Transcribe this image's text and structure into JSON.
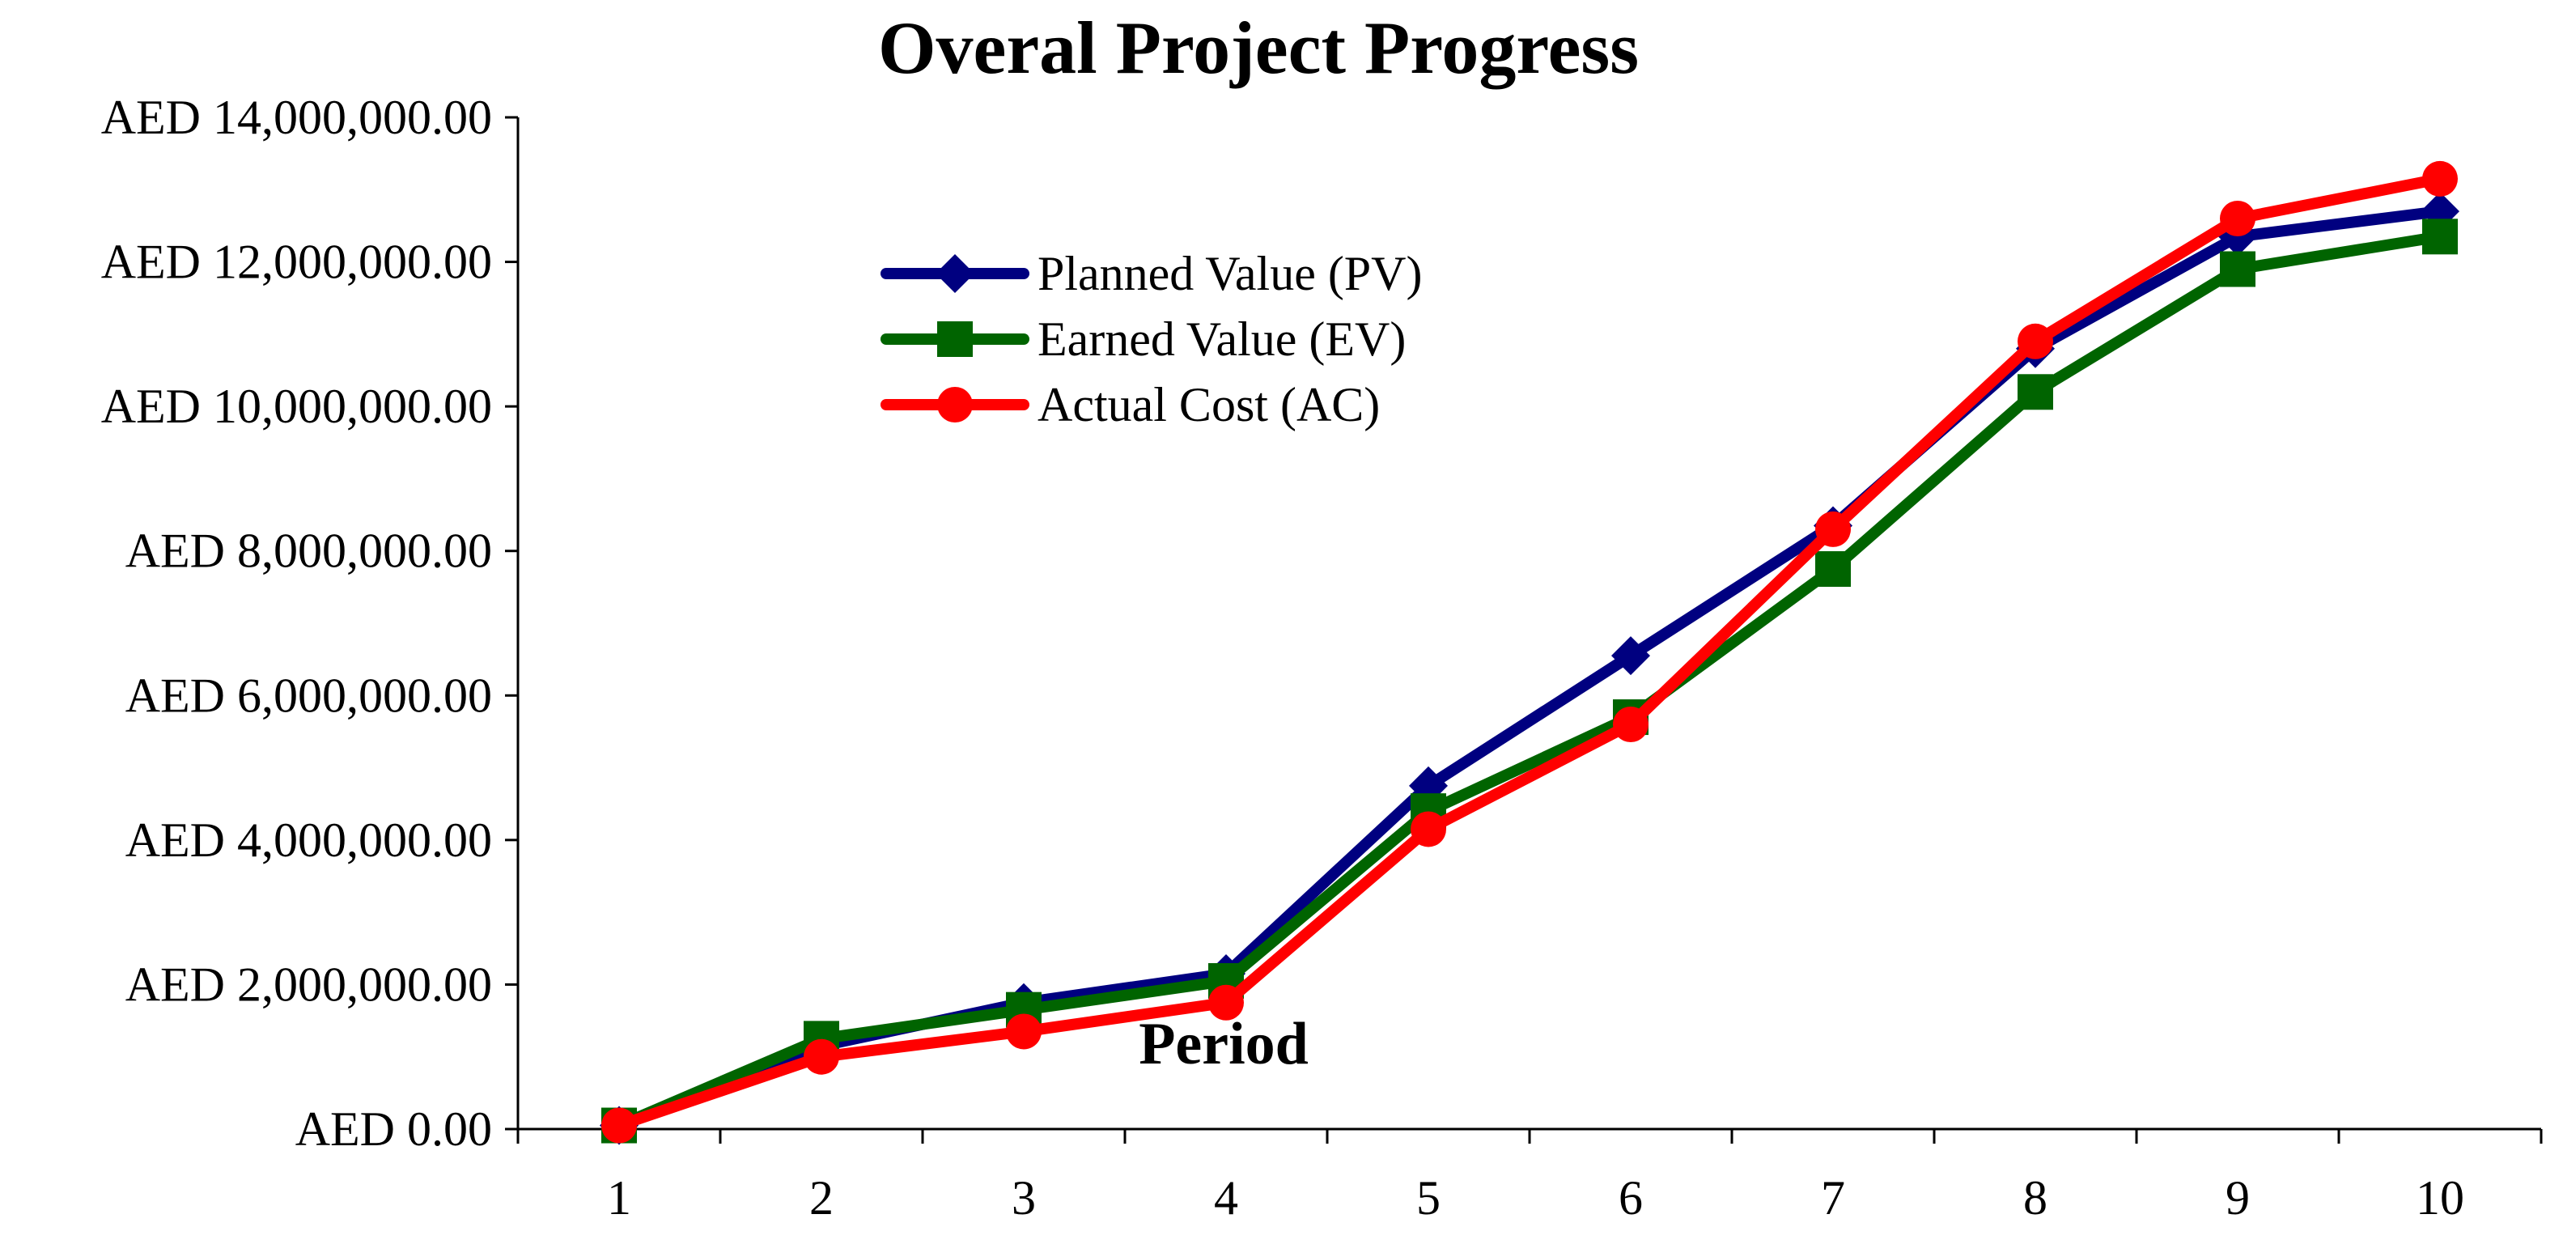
{
  "chart_data": {
    "type": "line",
    "title": "Overal Project Progress",
    "xlabel": "Period",
    "ylabel": "",
    "categories": [
      "1",
      "2",
      "3",
      "4",
      "5",
      "6",
      "7",
      "8",
      "9",
      "10"
    ],
    "ylim": [
      0,
      14000000
    ],
    "yticks": [
      0,
      2000000,
      4000000,
      6000000,
      8000000,
      10000000,
      12000000,
      14000000
    ],
    "ytick_labels": [
      "AED 0.00",
      "AED 2,000,000.00",
      "AED 4,000,000.00",
      "AED 6,000,000.00",
      "AED 8,000,000.00",
      "AED 10,000,000.00",
      "AED 12,000,000.00",
      "AED 14,000,000.00"
    ],
    "grid": false,
    "legend_position": "upper-left-center",
    "series": [
      {
        "name": "Planned Value (PV)",
        "color": "#000080",
        "marker": "diamond",
        "values": [
          50000,
          1150000,
          1750000,
          2150000,
          4750000,
          6550000,
          8350000,
          10800000,
          12350000,
          12700000
        ]
      },
      {
        "name": "Earned Value (EV)",
        "color": "#006400",
        "marker": "square",
        "values": [
          50000,
          1250000,
          1650000,
          2050000,
          4400000,
          5700000,
          7750000,
          10200000,
          11900000,
          12350000
        ]
      },
      {
        "name": "Actual Cost (AC)",
        "color": "#ff0000",
        "marker": "circle",
        "values": [
          50000,
          1000000,
          1350000,
          1750000,
          4150000,
          5600000,
          8300000,
          10900000,
          12600000,
          13150000
        ]
      }
    ]
  }
}
